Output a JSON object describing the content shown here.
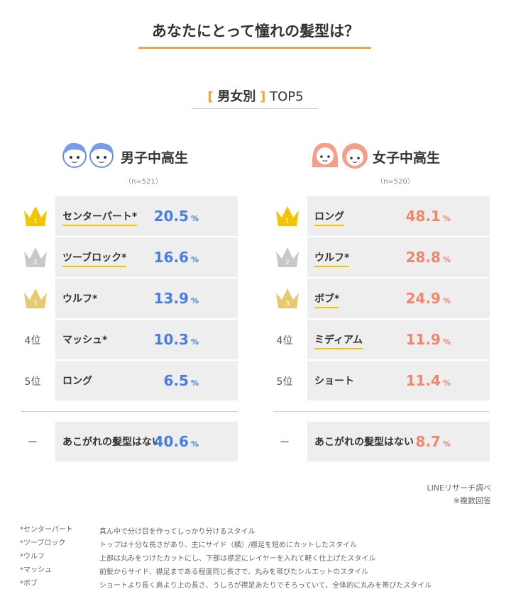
{
  "title": "あなたにとって憧れの髪型は？",
  "subtitle": {
    "brackets": [
      "[",
      "]"
    ],
    "label": "男女別",
    "rest": "TOP5"
  },
  "panels": [
    {
      "label": "男子中高生",
      "n": "（n=521）",
      "unit": "%",
      "color": "#4a7de0",
      "separator_color": "#b8cdf0",
      "rows": [
        {
          "rank": "1",
          "name": "センターパート*",
          "value": 20.5,
          "highlight": true
        },
        {
          "rank": "2",
          "name": "ツーブロック*",
          "value": 16.6,
          "highlight": true
        },
        {
          "rank": "3",
          "name": "ウルフ*",
          "value": 13.9,
          "highlight": false
        },
        {
          "rank": "4位",
          "name": "マッシュ*",
          "value": 10.3,
          "highlight": false
        },
        {
          "rank": "5位",
          "name": "ロング",
          "value": 6.5,
          "highlight": false
        }
      ],
      "none": {
        "mark": "ー",
        "name": "あこがれの髪型はない",
        "value": 40.6
      }
    },
    {
      "label": "女子中高生",
      "n": "（n=520）",
      "unit": "%",
      "color": "#f0866a",
      "separator_color": "#f5c8c8",
      "rows": [
        {
          "rank": "1",
          "name": "ロング",
          "value": 48.1,
          "highlight": true
        },
        {
          "rank": "2",
          "name": "ウルフ*",
          "value": 28.8,
          "highlight": true
        },
        {
          "rank": "3",
          "name": "ボブ*",
          "value": 24.9,
          "highlight": true
        },
        {
          "rank": "4位",
          "name": "ミディアム",
          "value": 11.9,
          "highlight": true
        },
        {
          "rank": "5位",
          "name": "ショート",
          "value": 11.4,
          "highlight": false
        }
      ],
      "none": {
        "mark": "ー",
        "name": "あこがれの髪型はない",
        "value": 8.7
      }
    }
  ],
  "source": [
    "LINEリサーチ調べ",
    "※複数回答"
  ],
  "footnotes": [
    {
      "term": "*センターパート",
      "text": "真ん中で分け目を作ってしっかり分けるスタイル"
    },
    {
      "term": "*ツーブロック",
      "text": "トップは十分な長さがあり、主にサイド（横）/襟足を短めにカットしたスタイル"
    },
    {
      "term": "*ウルフ",
      "text": "上部は丸みをつけたカットにし、下部は襟足にレイヤーを入れて軽く仕上げたスタイル"
    },
    {
      "term": "*マッシュ",
      "text": "前髪からサイド、襟足まである程度同じ長さで、丸みを帯びたシルエットのスタイル"
    },
    {
      "term": "*ボブ",
      "text": "ショートより長く肩より上の長さ、うしろが襟足あたりでそろっていて、全体的に丸みを帯びたスタイル"
    }
  ]
}
